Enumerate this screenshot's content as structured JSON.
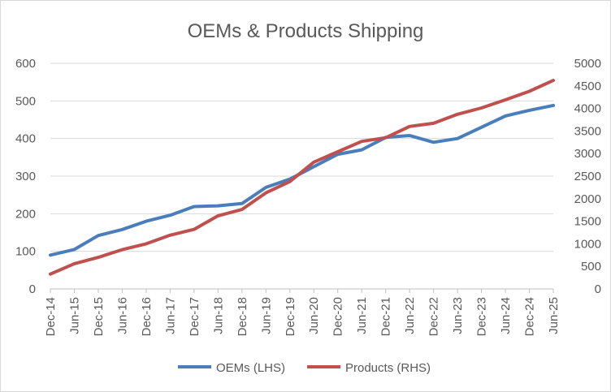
{
  "chart_data": {
    "type": "line",
    "title": "OEMs & Products Shipping",
    "categories": [
      "Dec-14",
      "Jun-15",
      "Dec-15",
      "Jun-16",
      "Dec-16",
      "Jun-17",
      "Dec-17",
      "Jun-18",
      "Dec-18",
      "Jun-19",
      "Dec-19",
      "Jun-20",
      "Dec-20",
      "Jun-21",
      "Dec-21",
      "Jun-22",
      "Dec-22",
      "Jun-23",
      "Dec-23",
      "Jun-24",
      "Dec-24",
      "Jun-25"
    ],
    "y_left": {
      "min": 0,
      "max": 600,
      "step": 100,
      "ticks": [
        "0",
        "100",
        "200",
        "300",
        "400",
        "500",
        "600"
      ]
    },
    "y_right": {
      "min": 0,
      "max": 5000,
      "step": 500,
      "ticks": [
        "0",
        "500",
        "1000",
        "1500",
        "2000",
        "2500",
        "3000",
        "3500",
        "4000",
        "4500",
        "5000"
      ]
    },
    "series": [
      {
        "name": "OEMs (LHS)",
        "axis": "left",
        "color": "#4a7ebb",
        "values": [
          90,
          105,
          142,
          158,
          180,
          196,
          219,
          221,
          227,
          270,
          292,
          325,
          358,
          370,
          403,
          408,
          390,
          400,
          430,
          460,
          475,
          488
        ]
      },
      {
        "name": "Products (RHS)",
        "axis": "right",
        "color": "#c0504d",
        "values": [
          330,
          560,
          700,
          870,
          1000,
          1190,
          1320,
          1620,
          1760,
          2130,
          2380,
          2810,
          3040,
          3270,
          3350,
          3600,
          3670,
          3870,
          4010,
          4190,
          4380,
          4620
        ]
      }
    ],
    "legend_position": "bottom",
    "grid": true
  }
}
